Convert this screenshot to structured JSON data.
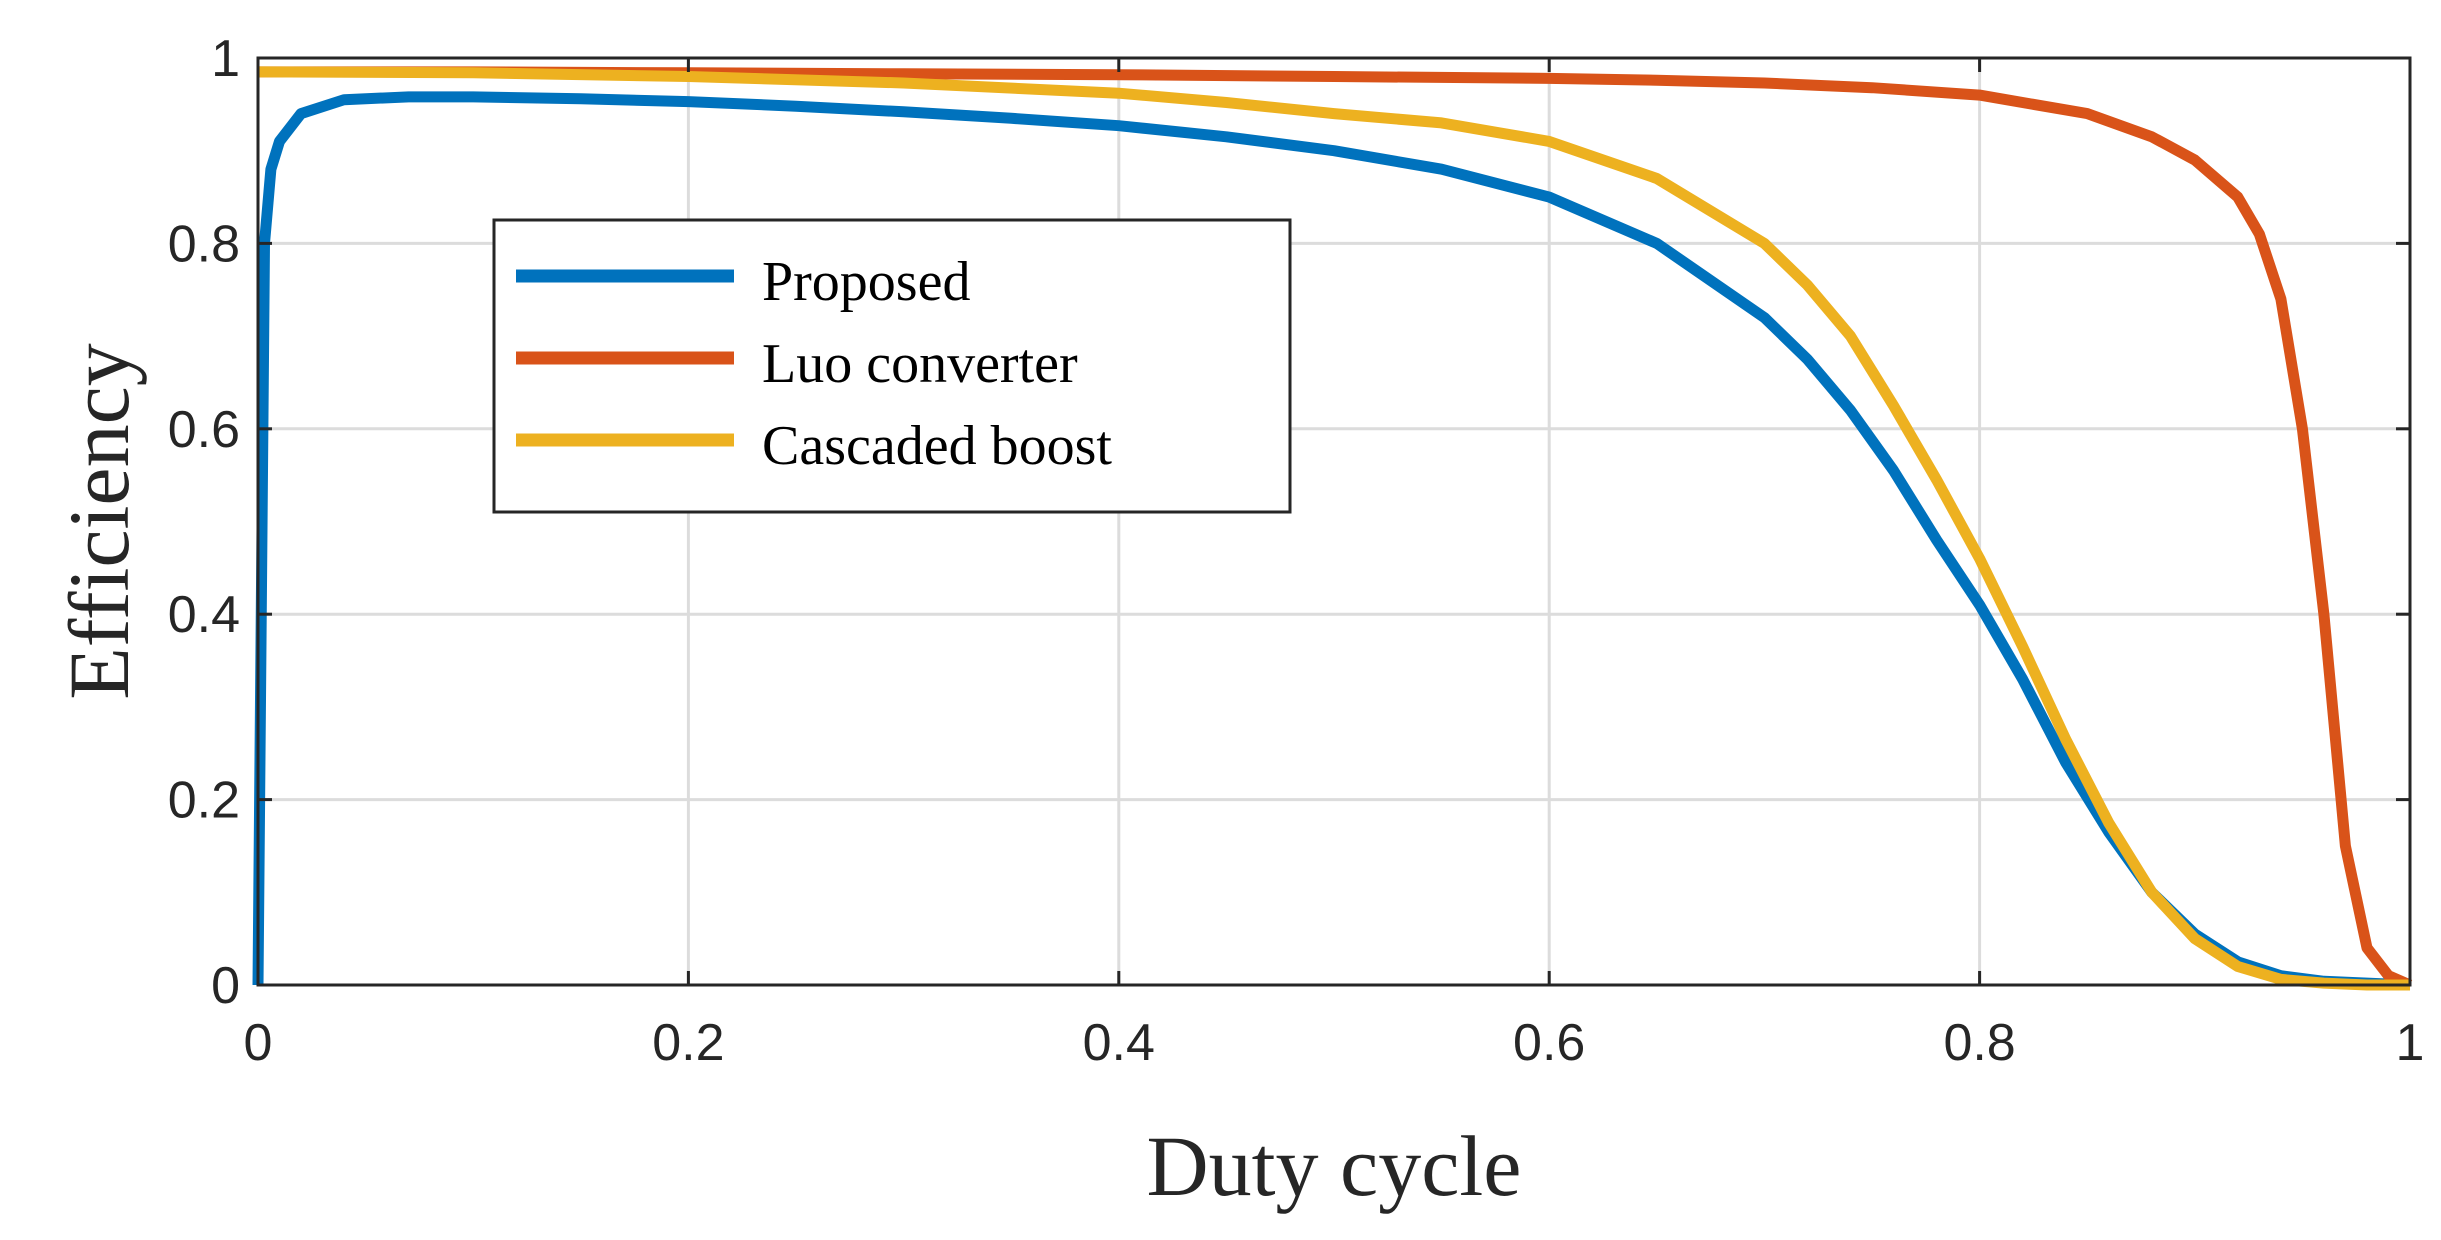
{
  "chart_data": {
    "type": "line",
    "title": "",
    "xlabel": "Duty cycle",
    "ylabel": "Efficiency",
    "xlim": [
      0,
      1
    ],
    "ylim": [
      0,
      1
    ],
    "grid": true,
    "legend_position": "upper-left-inside",
    "x_ticks": [
      {
        "value": 0,
        "label": "0"
      },
      {
        "value": 0.2,
        "label": "0.2"
      },
      {
        "value": 0.4,
        "label": "0.4"
      },
      {
        "value": 0.6,
        "label": "0.6"
      },
      {
        "value": 0.8,
        "label": "0.8"
      },
      {
        "value": 1,
        "label": "1"
      }
    ],
    "y_ticks": [
      {
        "value": 0,
        "label": "0"
      },
      {
        "value": 0.2,
        "label": "0.2"
      },
      {
        "value": 0.4,
        "label": "0.4"
      },
      {
        "value": 0.6,
        "label": "0.6"
      },
      {
        "value": 0.8,
        "label": "0.8"
      },
      {
        "value": 1,
        "label": "1"
      }
    ],
    "series": [
      {
        "name": "Proposed",
        "color": "#0072BD",
        "x": [
          0.0,
          0.003,
          0.006,
          0.01,
          0.02,
          0.04,
          0.07,
          0.1,
          0.15,
          0.2,
          0.25,
          0.3,
          0.35,
          0.4,
          0.45,
          0.5,
          0.55,
          0.6,
          0.65,
          0.7,
          0.72,
          0.74,
          0.76,
          0.78,
          0.8,
          0.82,
          0.84,
          0.86,
          0.88,
          0.9,
          0.92,
          0.94,
          0.96,
          0.98,
          1.0
        ],
        "y": [
          0.0,
          0.8,
          0.88,
          0.91,
          0.94,
          0.955,
          0.958,
          0.958,
          0.956,
          0.953,
          0.948,
          0.942,
          0.935,
          0.927,
          0.915,
          0.9,
          0.88,
          0.85,
          0.8,
          0.72,
          0.675,
          0.62,
          0.555,
          0.48,
          0.41,
          0.33,
          0.24,
          0.165,
          0.1,
          0.055,
          0.025,
          0.01,
          0.004,
          0.002,
          0.0
        ]
      },
      {
        "name": "Luo converter",
        "color": "#D95319",
        "x": [
          0.0,
          0.1,
          0.2,
          0.3,
          0.4,
          0.5,
          0.6,
          0.65,
          0.7,
          0.75,
          0.8,
          0.85,
          0.88,
          0.9,
          0.92,
          0.93,
          0.94,
          0.95,
          0.96,
          0.97,
          0.98,
          0.99,
          1.0
        ],
        "y": [
          0.985,
          0.985,
          0.984,
          0.983,
          0.982,
          0.98,
          0.978,
          0.976,
          0.973,
          0.968,
          0.96,
          0.94,
          0.915,
          0.89,
          0.85,
          0.81,
          0.74,
          0.6,
          0.4,
          0.15,
          0.04,
          0.01,
          0.0
        ]
      },
      {
        "name": "Cascaded boost",
        "color": "#EDB120",
        "x": [
          0.0,
          0.1,
          0.2,
          0.3,
          0.4,
          0.45,
          0.5,
          0.55,
          0.6,
          0.65,
          0.7,
          0.72,
          0.74,
          0.76,
          0.78,
          0.8,
          0.82,
          0.84,
          0.86,
          0.88,
          0.9,
          0.92,
          0.94,
          0.96,
          0.98,
          1.0
        ],
        "y": [
          0.985,
          0.984,
          0.98,
          0.973,
          0.962,
          0.952,
          0.94,
          0.93,
          0.91,
          0.87,
          0.8,
          0.755,
          0.7,
          0.625,
          0.545,
          0.46,
          0.365,
          0.265,
          0.175,
          0.1,
          0.05,
          0.02,
          0.006,
          0.002,
          0.0,
          0.0
        ]
      }
    ]
  }
}
